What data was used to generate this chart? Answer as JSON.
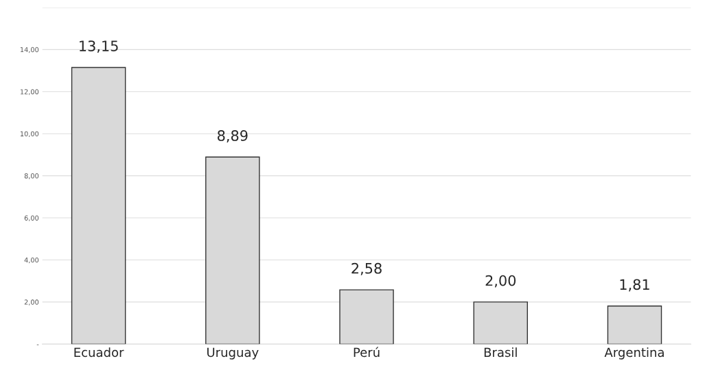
{
  "chart_data": {
    "type": "bar",
    "categories": [
      "Ecuador",
      "Uruguay",
      "Perú",
      "Brasil",
      "Argentina"
    ],
    "values": [
      13.15,
      8.89,
      2.58,
      2.0,
      1.81
    ],
    "value_labels": [
      "13,15",
      "8,89",
      "2,58",
      "2,00",
      "1,81"
    ],
    "color": "#d9d9d9",
    "ylim": [
      0,
      16
    ],
    "yticks": [
      {
        "value": 0,
        "label": "-"
      },
      {
        "value": 2,
        "label": "2,00"
      },
      {
        "value": 4,
        "label": "4,00"
      },
      {
        "value": 6,
        "label": "6,00"
      },
      {
        "value": 8,
        "label": "8,00"
      },
      {
        "value": 10,
        "label": "10,00"
      },
      {
        "value": 12,
        "label": "12,00"
      },
      {
        "value": 14,
        "label": "14,00"
      },
      {
        "value": 16,
        "label": null
      }
    ],
    "grid": "y"
  }
}
